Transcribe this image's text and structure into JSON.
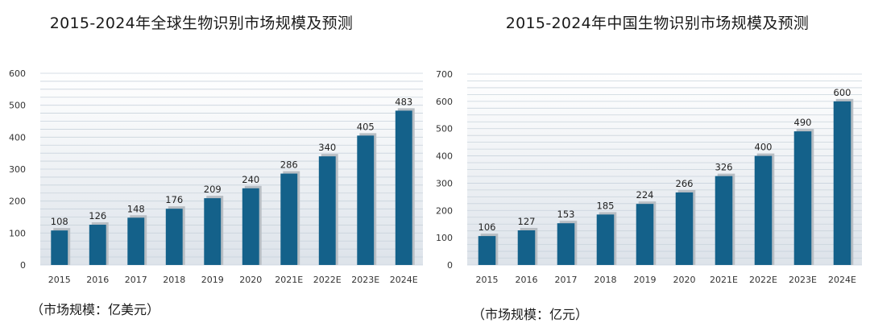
{
  "charts": [
    {
      "unit_note": "（市场规模：亿美元）",
      "chart_data": {
        "type": "bar",
        "title": "2015-2024年全球生物识别市场规模及预测",
        "categories": [
          "2015",
          "2016",
          "2017",
          "2018",
          "2019",
          "2020",
          "2021E",
          "2022E",
          "2023E",
          "2024E"
        ],
        "values": [
          108,
          126,
          148,
          176,
          209,
          240,
          286,
          340,
          405,
          483
        ],
        "yticks": [
          0,
          100,
          200,
          300,
          400,
          500,
          600
        ],
        "ylim": [
          0,
          600
        ],
        "xlabel": "",
        "ylabel": "",
        "grid": true
      }
    },
    {
      "unit_note": "（市场规模：亿元）",
      "chart_data": {
        "type": "bar",
        "title": "2015-2024年中国生物识别市场规模及预测",
        "categories": [
          "2015",
          "2016",
          "2017",
          "2018",
          "2019",
          "2020",
          "2021E",
          "2022E",
          "2023E",
          "2024E"
        ],
        "values": [
          106,
          127,
          153,
          185,
          224,
          266,
          326,
          400,
          490,
          600
        ],
        "yticks": [
          0,
          100,
          200,
          300,
          400,
          500,
          600,
          700
        ],
        "ylim": [
          0,
          700
        ],
        "xlabel": "",
        "ylabel": "",
        "grid": true
      }
    }
  ],
  "colors": {
    "bar": "#14618a",
    "bar_shadow": "#b8bec4",
    "grid": "#c9d3dc",
    "plot_bg_top": "#ffffff",
    "plot_bg_bottom": "#dde3ea"
  }
}
